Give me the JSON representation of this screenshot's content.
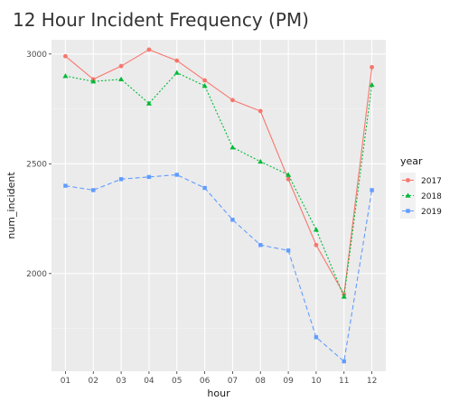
{
  "chart_data": {
    "type": "line",
    "title": "12 Hour Incident Frequency (PM)",
    "xlabel": "hour",
    "ylabel": "num_incident",
    "categories": [
      "01",
      "02",
      "03",
      "04",
      "05",
      "06",
      "07",
      "08",
      "09",
      "10",
      "11",
      "12"
    ],
    "ylim": [
      1555,
      3065
    ],
    "yticks": [
      2000,
      2500,
      3000
    ],
    "grid": true,
    "legend_title": "year",
    "legend_position": "right",
    "series": [
      {
        "name": "2017",
        "color": "#F8766D",
        "line_style": "solid",
        "marker": "circle",
        "values": [
          2990,
          2885,
          2945,
          3020,
          2970,
          2880,
          2790,
          2740,
          2430,
          2130,
          1905,
          2940
        ]
      },
      {
        "name": "2018",
        "color": "#00BA38",
        "line_style": "dotted",
        "marker": "triangle",
        "values": [
          2900,
          2875,
          2885,
          2775,
          2915,
          2855,
          2575,
          2510,
          2450,
          2200,
          1895,
          2860
        ]
      },
      {
        "name": "2019",
        "color": "#619CFF",
        "line_style": "dashed",
        "marker": "square",
        "values": [
          2400,
          2380,
          2430,
          2440,
          2450,
          2390,
          2245,
          2130,
          2105,
          1710,
          1600,
          2380
        ]
      }
    ]
  }
}
